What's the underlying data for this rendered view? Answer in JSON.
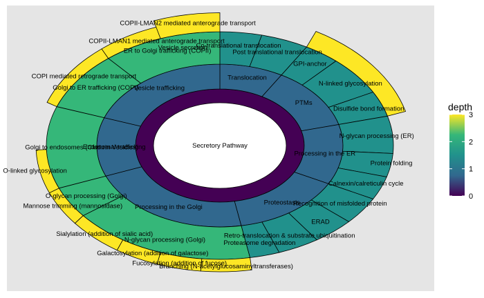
{
  "chart_data": {
    "type": "sunburst",
    "legend": {
      "title": "depth",
      "ticks": [
        3,
        2,
        1,
        0
      ],
      "range": [
        0,
        3
      ],
      "placement": "right",
      "colors": [
        "#440154",
        "#31688e",
        "#21918c",
        "#35b779",
        "#fde725"
      ]
    },
    "colors": {
      "panel": "#e5e5e5",
      "outline": "#000000"
    },
    "nodes": [
      {
        "id": "root",
        "label": "Secretory Pathway",
        "depth": 0,
        "start": 0,
        "end": 360,
        "color": "#440154"
      },
      {
        "id": "translocation",
        "label": "Translocation",
        "depth": 1,
        "start": 0,
        "end": 30,
        "color": "#31688e"
      },
      {
        "id": "ptms",
        "label": "PTMs",
        "depth": 1,
        "start": 30,
        "end": 75,
        "color": "#31688e"
      },
      {
        "id": "proc_er",
        "label": "Processing in the ER",
        "depth": 1,
        "start": 75,
        "end": 118,
        "color": "#31688e"
      },
      {
        "id": "proteostasis",
        "label": "Proteostasis",
        "depth": 1,
        "start": 118,
        "end": 170,
        "color": "#31688e"
      },
      {
        "id": "proc_golgi",
        "label": "Processing in the Golgi",
        "depth": 1,
        "start": 170,
        "end": 248,
        "color": "#31688e"
      },
      {
        "id": "endo",
        "label": "Endosomal trafficking",
        "depth": 1,
        "start": 248,
        "end": 290,
        "color": "#31688e"
      },
      {
        "id": "vesicle",
        "label": "Vesicle trafficking",
        "depth": 1,
        "start": 290,
        "end": 360,
        "color": "#31688e"
      },
      {
        "id": "cotrans",
        "label": "Co-translational translocation",
        "depth": 2,
        "start": 0,
        "end": 14,
        "color": "#21918c"
      },
      {
        "id": "posttrans",
        "label": "Post translational translocation",
        "depth": 2,
        "start": 14,
        "end": 30,
        "color": "#21918c"
      },
      {
        "id": "gpi",
        "label": "GPI-anchor",
        "depth": 2,
        "start": 30,
        "end": 42,
        "color": "#21918c"
      },
      {
        "id": "nlinked",
        "label": "N-linked glycosylation",
        "depth": 2,
        "start": 42,
        "end": 62,
        "color": "#21918c"
      },
      {
        "id": "disulfide",
        "label": "Disulfide bond formation",
        "depth": 2,
        "start": 62,
        "end": 75,
        "color": "#21918c"
      },
      {
        "id": "nglycan_er",
        "label": "N-glycan processing (ER)",
        "depth": 2,
        "start": 75,
        "end": 94,
        "color": "#21918c"
      },
      {
        "id": "folding",
        "label": "Protein folding",
        "depth": 2,
        "start": 94,
        "end": 106,
        "color": "#21918c"
      },
      {
        "id": "calnexin",
        "label": "Calnexin/calreticulin cycle",
        "depth": 2,
        "start": 106,
        "end": 118,
        "color": "#21918c"
      },
      {
        "id": "recog",
        "label": "Recognition of misfolded protein",
        "depth": 2,
        "start": 118,
        "end": 132,
        "color": "#21918c"
      },
      {
        "id": "erad",
        "label": "ERAD",
        "depth": 2,
        "start": 132,
        "end": 146,
        "color": "#21918c"
      },
      {
        "id": "retro",
        "label": "Retro-translocation & substrate ubiquitination",
        "depth": 2,
        "start": 146,
        "end": 160,
        "color": "#21918c"
      },
      {
        "id": "proteasome",
        "label": "Proteasome degradation",
        "depth": 2,
        "start": 160,
        "end": 170,
        "color": "#21918c"
      },
      {
        "id": "nglycan_golgi",
        "label": "N-glycan processing (Golgi)",
        "depth": 2,
        "start": 170,
        "end": 232,
        "color": "#35b779"
      },
      {
        "id": "oglycan",
        "label": "O-glycan processing (Golgi)",
        "depth": 2,
        "start": 232,
        "end": 248,
        "color": "#35b779"
      },
      {
        "id": "clathrin",
        "label": "Golgi to endosomes (Clathrin Vesicles)",
        "depth": 2,
        "start": 248,
        "end": 290,
        "color": "#35b779"
      },
      {
        "id": "copi",
        "label": "Golgi to ER trafficking (COPI)",
        "depth": 2,
        "start": 290,
        "end": 320,
        "color": "#35b779"
      },
      {
        "id": "copii",
        "label": "ER to Golgi trafficking (COPII)",
        "depth": 2,
        "start": 320,
        "end": 360,
        "color": "#35b779"
      },
      {
        "id": "branching",
        "label": "Branching (N-acetylglucosaminyltransferases)",
        "depth": 3,
        "start": 170,
        "end": 186,
        "color": "#fde725"
      },
      {
        "id": "fucos",
        "label": "Fucosylation (addition of fucose)",
        "depth": 3,
        "start": 186,
        "end": 200,
        "color": "#fde725"
      },
      {
        "id": "galact",
        "label": "Galactosylation (addition of galactose)",
        "depth": 3,
        "start": 200,
        "end": 214,
        "color": "#fde725"
      },
      {
        "id": "sialyl",
        "label": "Sialylation (addition of sialic acid)",
        "depth": 3,
        "start": 214,
        "end": 232,
        "color": "#fde725"
      },
      {
        "id": "mannose",
        "label": "Mannose trimming (mannosidase)",
        "depth": 3,
        "start": 232,
        "end": 248,
        "color": "#fde725"
      },
      {
        "id": "olinked",
        "label": "O-linked glycosylation",
        "depth": 3,
        "start": 248,
        "end": 268,
        "color": "#fde725"
      },
      {
        "id": "copi_retro",
        "label": "COPI mediated retrograde transport",
        "depth": 3,
        "start": 290,
        "end": 320,
        "color": "#fde725"
      },
      {
        "id": "lman1",
        "label": "COPII-LMAN1 mediated anterograde transport",
        "depth": 3,
        "start": 320,
        "end": 340,
        "color": "#fde725"
      },
      {
        "id": "lman2",
        "label": "COPII-LMAN2 mediated anterograde transport",
        "depth": 3,
        "start": 340,
        "end": 360,
        "color": "#fde725"
      },
      {
        "id": "gpi_outer",
        "label": "",
        "depth": 3,
        "start": 30,
        "end": 75,
        "color": "#fde725"
      }
    ],
    "labels": [
      {
        "text": "Secretory Pathway",
        "node": "root"
      },
      {
        "text": "Translocation",
        "node": "translocation"
      },
      {
        "text": "PTMs",
        "node": "ptms"
      },
      {
        "text": "Processing in the ER",
        "node": "proc_er"
      },
      {
        "text": "Proteostasis",
        "node": "proteostasis"
      },
      {
        "text": "Processing in the Golgi",
        "node": "proc_golgi"
      },
      {
        "text": "Endosomal trafficking",
        "node": "endo"
      },
      {
        "text": "Vesicle trafficking",
        "node": "vesicle"
      },
      {
        "text": "Co-translational translocation",
        "node": "cotrans"
      },
      {
        "text": "Post translational translocation",
        "node": "posttrans"
      },
      {
        "text": "GPI-anchor",
        "node": "gpi"
      },
      {
        "text": "N-linked glycosylation",
        "node": "nlinked"
      },
      {
        "text": "Disulfide bond formation",
        "node": "disulfide"
      },
      {
        "text": "N-glycan processing (ER)",
        "node": "nglycan_er"
      },
      {
        "text": "Protein folding",
        "node": "folding"
      },
      {
        "text": "Calnexin/calreticulin cycle",
        "node": "calnexin"
      },
      {
        "text": "Recognition of misfolded protein",
        "node": "recog"
      },
      {
        "text": "ERAD",
        "node": "erad"
      },
      {
        "text": "Retro-translocation & substrate ubiquitination",
        "node": "retro"
      },
      {
        "text": "Proteasome degradation",
        "node": "proteasome"
      },
      {
        "text": "N-glycan processing (Golgi)",
        "node": "nglycan_golgi"
      },
      {
        "text": "O-glycan processing (Golgi)",
        "node": "oglycan"
      },
      {
        "text": "Golgi to endosomes (Clathrin Vesicles)",
        "node": "clathrin"
      },
      {
        "text": "Golgi to ER trafficking (COPI)",
        "node": "copi"
      },
      {
        "text": "ER to Golgi trafficking (COPII)",
        "node": "copii"
      },
      {
        "text": "Vesicle secretion",
        "node": "copii"
      },
      {
        "text": "Branching (N-acetylglucosaminyltransferases)",
        "node": "branching"
      },
      {
        "text": "Fucosylation (addition of fucose)",
        "node": "fucos"
      },
      {
        "text": "Galactosylation (addition of galactose)",
        "node": "galact"
      },
      {
        "text": "Sialylation (addition of sialic acid)",
        "node": "sialyl"
      },
      {
        "text": "Mannose trimming (mannosidase)",
        "node": "mannose"
      },
      {
        "text": "O-linked glycosylation",
        "node": "olinked"
      },
      {
        "text": "COPI mediated retrograde transport",
        "node": "copi_retro"
      },
      {
        "text": "COPII-LMAN1 mediated anterograde transport",
        "node": "lman1"
      },
      {
        "text": "COPII-LMAN2 mediated anterograde transport",
        "node": "lman2"
      }
    ]
  }
}
